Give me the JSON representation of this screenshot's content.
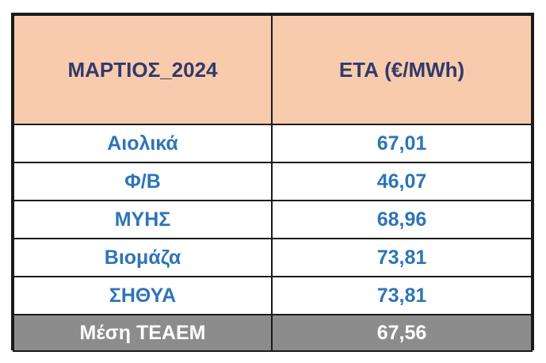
{
  "colors": {
    "header_bg": "#f8cbad",
    "header_text": "#2f3a6b",
    "body_text": "#2e75b6",
    "footer_bg": "#8c8c8c",
    "footer_text": "#ffffff"
  },
  "header": {
    "col1": "ΜΑΡΤΙΟΣ_2024",
    "col2": "ΕΤΑ (€/MWh)"
  },
  "rows": [
    {
      "label": "Αιολικά",
      "value": "67,01"
    },
    {
      "label": "Φ/Β",
      "value": "46,07"
    },
    {
      "label": "ΜΥΗΣ",
      "value": "68,96"
    },
    {
      "label": "Βιομάζα",
      "value": "73,81"
    },
    {
      "label": "ΣΗΘΥΑ",
      "value": "73,81"
    }
  ],
  "footer": {
    "label": "Μέση ΤΕΑΕΜ",
    "value": "67,56"
  }
}
